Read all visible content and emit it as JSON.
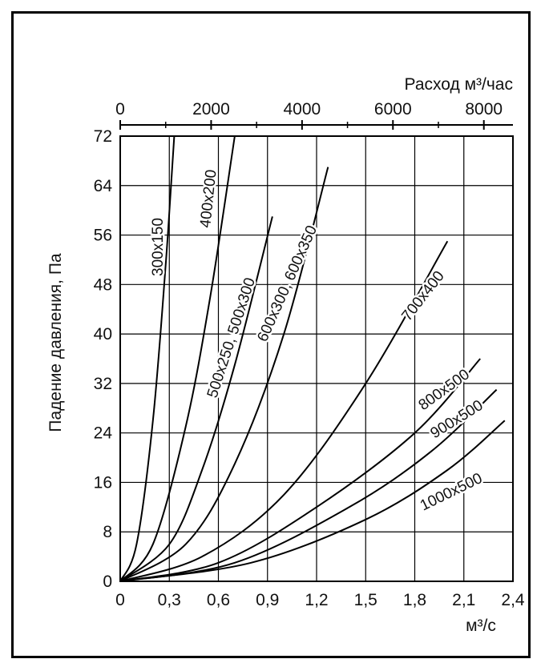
{
  "chart_data": {
    "type": "line",
    "title": "",
    "xlabel": "м³/с",
    "ylabel": "Падение давления, Па",
    "x2label": "Расход м³/час",
    "xlim": [
      0,
      2.4
    ],
    "ylim": [
      0,
      72
    ],
    "x2lim": [
      0,
      8640
    ],
    "x_ticks": [
      "0",
      "0,3",
      "0,6",
      "0,9",
      "1,2",
      "1,5",
      "1,8",
      "2,1",
      "2,4"
    ],
    "x2_ticks": [
      "0",
      "2000",
      "4000",
      "6000",
      "8000"
    ],
    "y_ticks": [
      "0",
      "8",
      "16",
      "24",
      "32",
      "40",
      "48",
      "56",
      "64",
      "72"
    ],
    "grid": true,
    "series": [
      {
        "name": "300x150",
        "label_text": "300x150",
        "x": [
          0,
          0.1,
          0.2,
          0.28,
          0.33
        ],
        "y": [
          0,
          6,
          26,
          52,
          72
        ]
      },
      {
        "name": "400x200",
        "label_text": "400x200",
        "x": [
          0,
          0.2,
          0.4,
          0.55,
          0.7
        ],
        "y": [
          0,
          6,
          25,
          46,
          72
        ]
      },
      {
        "name": "500x250, 500x300",
        "label_text": "500x250, 500x300",
        "x": [
          0,
          0.3,
          0.5,
          0.7,
          0.93
        ],
        "y": [
          0,
          6,
          18,
          35,
          59
        ]
      },
      {
        "name": "600x300, 600x350",
        "label_text": "600x300, 600x350",
        "x": [
          0,
          0.4,
          0.7,
          1.0,
          1.27
        ],
        "y": [
          0,
          6,
          19,
          40,
          67
        ]
      },
      {
        "name": "700x400",
        "label_text": "700x400",
        "x": [
          0,
          0.5,
          1.0,
          1.5,
          2.0
        ],
        "y": [
          0,
          4,
          14,
          32,
          55
        ]
      },
      {
        "name": "800x500",
        "label_text": "800x500",
        "x": [
          0,
          0.6,
          1.2,
          1.8,
          2.2
        ],
        "y": [
          0,
          3,
          12,
          24,
          36
        ]
      },
      {
        "name": "900x500",
        "label_text": "900x500",
        "x": [
          0,
          0.7,
          1.4,
          1.9,
          2.3
        ],
        "y": [
          0,
          3,
          12,
          21,
          31
        ]
      },
      {
        "name": "1000x500",
        "label_text": "1000x500",
        "x": [
          0,
          0.8,
          1.5,
          2.0,
          2.35
        ],
        "y": [
          0,
          3,
          10,
          18,
          26
        ]
      }
    ]
  }
}
